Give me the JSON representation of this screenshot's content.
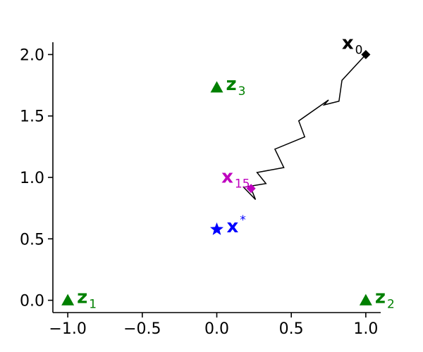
{
  "chart_data": {
    "type": "scatter",
    "title": "",
    "xlabel": "",
    "ylabel": "",
    "xlim": [
      -1.1,
      1.1
    ],
    "ylim": [
      -0.1,
      2.1
    ],
    "grid": false,
    "x_ticks": [
      -1.0,
      -0.5,
      0.0,
      0.5,
      1.0
    ],
    "x_tick_labels": [
      "−1.0",
      "−0.5",
      "0.0",
      "0.5",
      "1.0"
    ],
    "y_ticks": [
      0.0,
      0.5,
      1.0,
      1.5,
      2.0
    ],
    "y_tick_labels": [
      "0.0",
      "0.5",
      "1.0",
      "1.5",
      "2.0"
    ],
    "points": [
      {
        "label": "z",
        "subscript": "1",
        "superscript": "",
        "x": -1.0,
        "y": 0.0,
        "marker": "triangle",
        "color": "#008000"
      },
      {
        "label": "z",
        "subscript": "2",
        "superscript": "",
        "x": 1.0,
        "y": 0.0,
        "marker": "triangle",
        "color": "#008000"
      },
      {
        "label": "z",
        "subscript": "3",
        "superscript": "",
        "x": 0.0,
        "y": 1.732,
        "marker": "triangle",
        "color": "#008000"
      },
      {
        "label": "x",
        "subscript": "",
        "superscript": "*",
        "x": 0.0,
        "y": 0.577,
        "marker": "star",
        "color": "#0000ff"
      },
      {
        "label": "x",
        "subscript": "0",
        "superscript": "",
        "x": 1.0,
        "y": 2.0,
        "marker": "diamond",
        "color": "#000000"
      },
      {
        "label": "x",
        "subscript": "15",
        "superscript": "",
        "x": 0.23,
        "y": 0.91,
        "marker": "diamond",
        "color": "#bf00bf"
      }
    ],
    "path": {
      "color": "#000000",
      "x": [
        1.0,
        0.84,
        0.82,
        0.72,
        0.75,
        0.55,
        0.59,
        0.39,
        0.45,
        0.27,
        0.33,
        0.18,
        0.26,
        0.23
      ],
      "y": [
        2.0,
        1.79,
        1.62,
        1.59,
        1.63,
        1.46,
        1.33,
        1.23,
        1.08,
        1.04,
        0.95,
        0.92,
        0.82,
        0.91
      ]
    }
  }
}
